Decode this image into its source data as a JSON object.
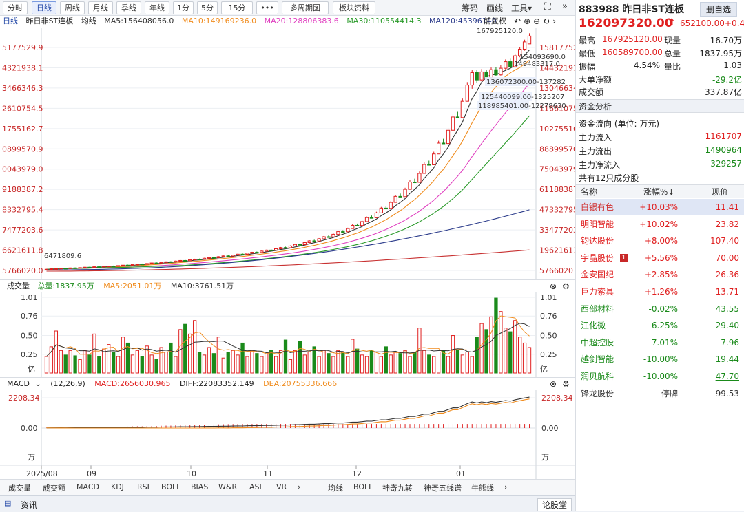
{
  "toolbar": {
    "periods": [
      "分时",
      "日线",
      "周线",
      "月线",
      "季线",
      "年线",
      "1分",
      "5分",
      "15分"
    ],
    "more": "•••",
    "multi_period": "多周期图",
    "sector_info": "板块资料",
    "chips": "筹码",
    "draw": "画线",
    "tools": "工具"
  },
  "indicator_row": {
    "title": "日线",
    "name": "昨日非ST连板",
    "avg": "均线",
    "ma5": "MA5:156408056.0",
    "ma10": "MA10:149169236.0",
    "ma20": "MA20:128806383.6",
    "ma30": "MA30:110554414.3",
    "ma120": "MA120:45396140",
    "fq": "前复权"
  },
  "price_axis": {
    "left": [
      "5177529.9",
      "4321938.1",
      "3466346.3",
      "2610754.5",
      "1755162.7",
      "0899570.9",
      "0043979.0",
      "9188387.2",
      "8332795.4",
      "7477203.6",
      "6621611.8",
      "5766020.0"
    ],
    "right": [
      "158177529",
      "144321938",
      "130466346",
      "116610754",
      "102755162",
      "88899570",
      "75043979",
      "61188387",
      "47332795",
      "33477203",
      "19621611",
      "5766020"
    ],
    "annotations": [
      "167925120.0",
      "154093690.0",
      "149483317.0",
      "136072300.00-137282",
      "125440099.00-1325207",
      "118985401.00-12278630",
      "6471809.6"
    ]
  },
  "candles": [
    {
      "o": 6400000.0,
      "c": 6600000.0,
      "h": 6800000.0,
      "l": 6200000.0
    },
    {
      "o": 6600000.0,
      "c": 6900000.0,
      "h": 7100000.0,
      "l": 6500000.0
    },
    {
      "o": 6900000.0,
      "c": 7000000.0,
      "h": 7200000.0,
      "l": 6800000.0
    },
    {
      "o": 7000000.0,
      "c": 7300000.0,
      "h": 7500000.0,
      "l": 6900000.0
    },
    {
      "o": 7300000.0,
      "c": 7200000.0,
      "h": 7500000.0,
      "l": 7000000.0
    },
    {
      "o": 7200000.0,
      "c": 7500000.0,
      "h": 7700000.0,
      "l": 7100000.0
    },
    {
      "o": 7500000.0,
      "c": 7400000.0,
      "h": 7800000.0,
      "l": 7300000.0
    },
    {
      "o": 7400000.0,
      "c": 7700000.0,
      "h": 7900000.0,
      "l": 7300000.0
    },
    {
      "o": 7700000.0,
      "c": 8000000.0,
      "h": 8200000.0,
      "l": 7600000.0
    },
    {
      "o": 8000000.0,
      "c": 7900000.0,
      "h": 8300000.0,
      "l": 7800000.0
    },
    {
      "o": 7900000.0,
      "c": 8300000.0,
      "h": 8500000.0,
      "l": 7800000.0
    },
    {
      "o": 8300000.0,
      "c": 8200000.0,
      "h": 8600000.0,
      "l": 8100000.0
    },
    {
      "o": 8200000.0,
      "c": 8600000.0,
      "h": 8800000.0,
      "l": 8100000.0
    },
    {
      "o": 8600000.0,
      "c": 8800000.0,
      "h": 9000000.0,
      "l": 8500000.0
    },
    {
      "o": 8800000.0,
      "c": 8700000.0,
      "h": 9100000.0,
      "l": 8600000.0
    },
    {
      "o": 8700000.0,
      "c": 9100000.0,
      "h": 9300000.0,
      "l": 8600000.0
    },
    {
      "o": 9100000.0,
      "c": 9400000.0,
      "h": 9600000.0,
      "l": 9000000.0
    },
    {
      "o": 9400000.0,
      "c": 9300000.0,
      "h": 9700000.0,
      "l": 9200000.0
    },
    {
      "o": 9300000.0,
      "c": 9800000.0,
      "h": 10000000.0,
      "l": 9200000.0
    },
    {
      "o": 9800000.0,
      "c": 10100000.0,
      "h": 10400000.0,
      "l": 9700000.0
    },
    {
      "o": 10100000.0,
      "c": 10000000.0,
      "h": 10500000.0,
      "l": 9900000.0
    },
    {
      "o": 10000000.0,
      "c": 10500000.0,
      "h": 10800000.0,
      "l": 9900000.0
    },
    {
      "o": 10500000.0,
      "c": 10900000.0,
      "h": 11100000.0,
      "l": 10400000.0
    },
    {
      "o": 10900000.0,
      "c": 10800000.0,
      "h": 11300000.0,
      "l": 10700000.0
    },
    {
      "o": 10800000.0,
      "c": 11300000.0,
      "h": 11600000.0,
      "l": 10700000.0
    },
    {
      "o": 11300000.0,
      "c": 11700000.0,
      "h": 12000000.0,
      "l": 11200000.0
    },
    {
      "o": 11700000.0,
      "c": 11600000.0,
      "h": 12100000.0,
      "l": 11500000.0
    },
    {
      "o": 11600000.0,
      "c": 12200000.0,
      "h": 12500000.0,
      "l": 11500000.0
    },
    {
      "o": 12200000.0,
      "c": 12600000.0,
      "h": 12900000.0,
      "l": 12100000.0
    },
    {
      "o": 12600000.0,
      "c": 12500000.0,
      "h": 13000000.0,
      "l": 12400000.0
    },
    {
      "o": 12500000.0,
      "c": 13100000.0,
      "h": 13400000.0,
      "l": 12400000.0
    },
    {
      "o": 13100000.0,
      "c": 13500000.0,
      "h": 13800000.0,
      "l": 13000000.0
    },
    {
      "o": 13500000.0,
      "c": 13400000.0,
      "h": 13900000.0,
      "l": 13300000.0
    },
    {
      "o": 13400000.0,
      "c": 14100000.0,
      "h": 14400000.0,
      "l": 13300000.0
    },
    {
      "o": 14100000.0,
      "c": 14600000.0,
      "h": 14900000.0,
      "l": 14000000.0
    },
    {
      "o": 14600000.0,
      "c": 14500000.0,
      "h": 15000000.0,
      "l": 14400000.0
    },
    {
      "o": 14500000.0,
      "c": 15200000.0,
      "h": 15500000.0,
      "l": 14400000.0
    },
    {
      "o": 15200000.0,
      "c": 15700000.0,
      "h": 16000000.0,
      "l": 15100000.0
    },
    {
      "o": 15700000.0,
      "c": 15600000.0,
      "h": 16200000.0,
      "l": 15500000.0
    },
    {
      "o": 15600000.0,
      "c": 16300000.0,
      "h": 16600000.0,
      "l": 15500000.0
    },
    {
      "o": 16300000.0,
      "c": 16900000.0,
      "h": 17200000.0,
      "l": 16200000.0
    },
    {
      "o": 16900000.0,
      "c": 16800000.0,
      "h": 17400000.0,
      "l": 16700000.0
    },
    {
      "o": 16800000.0,
      "c": 17600000.0,
      "h": 17900000.0,
      "l": 16700000.0
    },
    {
      "o": 17600000.0,
      "c": 18200000.0,
      "h": 18500000.0,
      "l": 17500000.0
    },
    {
      "o": 18200000.0,
      "c": 18100000.0,
      "h": 18700000.0,
      "l": 18000000.0
    },
    {
      "o": 18100000.0,
      "c": 19000000.0,
      "h": 19300000.0,
      "l": 18000000.0
    },
    {
      "o": 19000000.0,
      "c": 19700000.0,
      "h": 20000000.0,
      "l": 18900000.0
    },
    {
      "o": 19700000.0,
      "c": 19600000.0,
      "h": 20200000.0,
      "l": 19500000.0
    },
    {
      "o": 19600000.0,
      "c": 20600000.0,
      "h": 20900000.0,
      "l": 19500000.0
    },
    {
      "o": 20600000.0,
      "c": 21400000.0,
      "h": 21800000.0,
      "l": 20500000.0
    },
    {
      "o": 21400000.0,
      "c": 21300000.0,
      "h": 22000000.0,
      "l": 21200000.0
    },
    {
      "o": 21300000.0,
      "c": 22500000.0,
      "h": 22900000.0,
      "l": 21200000.0
    },
    {
      "o": 22500000.0,
      "c": 23500000.0,
      "h": 23900000.0,
      "l": 22400000.0
    },
    {
      "o": 23500000.0,
      "c": 23400000.0,
      "h": 24200000.0,
      "l": 23300000.0
    },
    {
      "o": 23400000.0,
      "c": 24800000.0,
      "h": 25200000.0,
      "l": 23300000.0
    },
    {
      "o": 24800000.0,
      "c": 26000000.0,
      "h": 26400000.0,
      "l": 24700000.0
    },
    {
      "o": 26000000.0,
      "c": 25900000.0,
      "h": 26800000.0,
      "l": 25800000.0
    },
    {
      "o": 25900000.0,
      "c": 27400000.0,
      "h": 27900000.0,
      "l": 25800000.0
    },
    {
      "o": 27400000.0,
      "c": 28800000.0,
      "h": 29300000.0,
      "l": 27300000.0
    },
    {
      "o": 28800000.0,
      "c": 28700000.0,
      "h": 29700000.0,
      "l": 28600000.0
    },
    {
      "o": 28700000.0,
      "c": 30500000.0,
      "h": 31000000.0,
      "l": 28600000.0
    },
    {
      "o": 30500000.0,
      "c": 32300000.0,
      "h": 32900000.0,
      "l": 30400000.0
    },
    {
      "o": 32300000.0,
      "c": 32200000.0,
      "h": 33300000.0,
      "l": 32100000.0
    },
    {
      "o": 32200000.0,
      "c": 34400000.0,
      "h": 35000000.0,
      "l": 32100000.0
    },
    {
      "o": 34400000.0,
      "c": 36600000.0,
      "h": 37300000.0,
      "l": 34300000.0
    },
    {
      "o": 36600000.0,
      "c": 36500000.0,
      "h": 37800000.0,
      "l": 36400000.0
    },
    {
      "o": 36500000.0,
      "c": 39200000.0,
      "h": 39900000.0,
      "l": 36400000.0
    },
    {
      "o": 39200000.0,
      "c": 41900000.0,
      "h": 42600000.0,
      "l": 39100000.0
    },
    {
      "o": 41900000.0,
      "c": 41800000.0,
      "h": 43300000.0,
      "l": 41700000.0
    },
    {
      "o": 41800000.0,
      "c": 45100000.0,
      "h": 45900000.0,
      "l": 41700000.0
    },
    {
      "o": 45100000.0,
      "c": 48400000.0,
      "h": 49200000.0,
      "l": 45000000.0
    },
    {
      "o": 48400000.0,
      "c": 48200000.0,
      "h": 50000000.0,
      "l": 48100000.0
    },
    {
      "o": 48200000.0,
      "c": 52300000.0,
      "h": 53200000.0,
      "l": 48100000.0
    },
    {
      "o": 52300000.0,
      "c": 56400000.0,
      "h": 57400000.0,
      "l": 52200000.0
    },
    {
      "o": 56400000.0,
      "c": 56200000.0,
      "h": 58300000.0,
      "l": 56000000.0
    },
    {
      "o": 56200000.0,
      "c": 61200000.0,
      "h": 62300000.0,
      "l": 56100000.0
    },
    {
      "o": 61200000.0,
      "c": 66200000.0,
      "h": 67400000.0,
      "l": 61100000.0
    },
    {
      "o": 66200000.0,
      "c": 66000000.0,
      "h": 68500000.0,
      "l": 65800000.0
    },
    {
      "o": 66000000.0,
      "c": 72100000.0,
      "h": 73400000.0,
      "l": 65900000.0
    },
    {
      "o": 72100000.0,
      "c": 78200000.0,
      "h": 79600000.0,
      "l": 72000000.0
    },
    {
      "o": 78200000.0,
      "c": 78000000.0,
      "h": 80800000.0,
      "l": 77800000.0
    },
    {
      "o": 78000000.0,
      "c": 85400000.0,
      "h": 86900000.0,
      "l": 77900000.0
    },
    {
      "o": 85400000.0,
      "c": 92800000.0,
      "h": 94400000.0,
      "l": 85300000.0
    },
    {
      "o": 92800000.0,
      "c": 92500000.0,
      "h": 95800000.0,
      "l": 92200000.0
    },
    {
      "o": 92500000.0,
      "c": 101600000.0,
      "h": 103300000.0,
      "l": 92400000.0
    },
    {
      "o": 101600000.0,
      "c": 110700000.0,
      "h": 112500000.0,
      "l": 101500000.0
    },
    {
      "o": 110700000.0,
      "c": 110300000.0,
      "h": 114200000.0,
      "l": 109900000.0
    },
    {
      "o": 110300000.0,
      "c": 121400000.0,
      "h": 123300000.0,
      "l": 110200000.0
    },
    {
      "o": 121400000.0,
      "c": 132500000.0,
      "h": 134500000.0,
      "l": 121300000.0
    },
    {
      "o": 132500000.0,
      "c": 141000000.0,
      "h": 143000000.0,
      "l": 130000000.0
    },
    {
      "o": 141000000.0,
      "c": 136000000.0,
      "h": 143000000.0,
      "l": 134000000.0
    },
    {
      "o": 136000000.0,
      "c": 141500000.0,
      "h": 143500000.0,
      "l": 135000000.0
    },
    {
      "o": 141500000.0,
      "c": 137500000.0,
      "h": 143000000.0,
      "l": 136000000.0
    },
    {
      "o": 137500000.0,
      "c": 143000000.0,
      "h": 144500000.0,
      "l": 136500000.0
    },
    {
      "o": 143000000.0,
      "c": 139500000.0,
      "h": 145000000.0,
      "l": 138500000.0
    },
    {
      "o": 139500000.0,
      "c": 144000000.0,
      "h": 146000000.0,
      "l": 139000000.0
    },
    {
      "o": 144000000.0,
      "c": 148500000.0,
      "h": 150000000.0,
      "l": 143000000.0
    },
    {
      "o": 148500000.0,
      "c": 145000000.0,
      "h": 150500000.0,
      "l": 144000000.0
    },
    {
      "o": 145000000.0,
      "c": 152500000.0,
      "h": 154000000.0,
      "l": 144500000.0
    },
    {
      "o": 152500000.0,
      "c": 157000000.0,
      "h": 158500000.0,
      "l": 151500000.0
    },
    {
      "o": 157000000.0,
      "c": 162000000.0,
      "h": 163500000.0,
      "l": 156000000.0
    },
    {
      "o": 160600000.0,
      "c": 166000000.0,
      "h": 167900000.0,
      "l": 160600000.0
    }
  ],
  "volume_panel": {
    "label": "成交量",
    "total": "总量:1837.95万",
    "ma5": "MA5:2051.01万",
    "ma10": "MA10:3761.51万",
    "ticks": [
      "1.01",
      "0.76",
      "0.50",
      "0.25"
    ],
    "unit": "亿",
    "values": [
      0.22,
      0.35,
      0.56,
      0.3,
      0.24,
      0.3,
      0.23,
      0.18,
      0.3,
      0.24,
      0.52,
      0.22,
      0.32,
      0.38,
      0.28,
      0.22,
      0.48,
      0.4,
      0.24,
      0.3,
      0.22,
      0.36,
      0.24,
      0.18,
      0.34,
      0.28,
      0.4,
      0.22,
      0.58,
      0.65,
      0.52,
      0.7,
      0.28,
      0.24,
      0.34,
      0.26,
      0.48,
      0.2,
      0.28,
      0.3,
      0.24,
      0.4,
      0.22,
      0.3,
      0.26,
      0.22,
      0.28,
      0.3,
      0.22,
      0.3,
      0.44,
      0.18,
      0.3,
      0.42,
      0.24,
      0.28,
      0.35,
      0.22,
      0.3,
      0.26,
      0.22,
      0.3,
      0.28,
      0.22,
      0.45,
      0.32,
      0.24,
      0.22,
      0.3,
      0.28,
      0.22,
      0.35,
      0.24,
      0.28,
      0.26,
      0.3,
      0.22,
      0.28,
      0.6,
      0.3,
      0.24,
      0.22,
      0.28,
      0.3,
      0.22,
      0.5,
      0.3,
      0.24,
      0.28,
      0.22,
      0.48,
      0.66,
      0.58,
      0.75,
      1.0,
      0.82,
      0.6,
      0.55,
      0.7,
      0.48,
      0.4,
      0.34,
      0.28,
      0.42,
      0.2
    ]
  },
  "macd_panel": {
    "label": "MACD",
    "params": "(12,26,9)",
    "macd": "MACD:2656030.965",
    "diff": "DIFF:22083352.149",
    "dea": "DEA:20755336.666",
    "ticks": [
      "2208.34",
      "0.00"
    ],
    "unit": "万"
  },
  "x_axis": [
    "2025/08",
    "09",
    "10",
    "11",
    "12",
    "01"
  ],
  "bottom_tabs": {
    "left": [
      "成交量",
      "成交额",
      "MACD",
      "KDJ",
      "RSI",
      "BOLL",
      "BIAS",
      "W&R",
      "ASI",
      "VR"
    ],
    "right": [
      "均线",
      "BOLL",
      "神奇九转",
      "神奇五线谱",
      "牛熊线"
    ]
  },
  "status": {
    "news": "资讯",
    "forum": "论股堂"
  },
  "quote": {
    "code": "883988",
    "name": "昨日非ST连板",
    "add": "删自选",
    "price": "162097320.00",
    "change": "652100.00",
    "pct": "+0.4",
    "high_label": "最高",
    "high": "167925120.00",
    "now_label": "现量",
    "now": "16.70万",
    "low_label": "最低",
    "low": "160589700.00",
    "vol_label": "总量",
    "vol": "1837.95万",
    "amp_label": "振幅",
    "amp": "4.54%",
    "ratio_label": "量比",
    "ratio": "1.03",
    "big_label": "大单净额",
    "big": "-29.2亿",
    "amt_label": "成交额",
    "amt": "337.87亿"
  },
  "funds": {
    "title": "资金分析",
    "unit": "资金流向 (单位: 万元)",
    "in_label": "主力流入",
    "in": "1161707",
    "out_label": "主力流出",
    "out": "1490964",
    "net_label": "主力净流入",
    "net": "-329257"
  },
  "constituents": {
    "title": "共有12只成分股",
    "h_name": "名称",
    "h_chg": "涨幅%↓",
    "h_price": "现价",
    "rows": [
      {
        "name": "白银有色",
        "chg": "+10.03%",
        "price": "11.41",
        "up": true,
        "ul": true
      },
      {
        "name": "明阳智能",
        "chg": "+10.02%",
        "price": "23.82",
        "up": true,
        "ul": true
      },
      {
        "name": "钧达股份",
        "chg": "+8.00%",
        "price": "107.40",
        "up": true,
        "ul": false
      },
      {
        "name": "宇晶股份",
        "chg": "+5.56%",
        "price": "70.00",
        "up": true,
        "ul": false,
        "badge": "1"
      },
      {
        "name": "金安国纪",
        "chg": "+2.85%",
        "price": "26.36",
        "up": true,
        "ul": false
      },
      {
        "name": "巨力索具",
        "chg": "+1.26%",
        "price": "13.71",
        "up": true,
        "ul": false
      },
      {
        "name": "西部材料",
        "chg": "-0.02%",
        "price": "43.55",
        "up": false,
        "ul": false
      },
      {
        "name": "江化微",
        "chg": "-6.25%",
        "price": "29.40",
        "up": false,
        "ul": false
      },
      {
        "name": "中超控股",
        "chg": "-7.01%",
        "price": "7.96",
        "up": false,
        "ul": false
      },
      {
        "name": "越剑智能",
        "chg": "-10.00%",
        "price": "19.44",
        "up": false,
        "ul": true
      },
      {
        "name": "润贝航科",
        "chg": "-10.00%",
        "price": "47.70",
        "up": false,
        "ul": true
      },
      {
        "name": "锋龙股份",
        "chg": "停牌",
        "price": "99.53",
        "up": null,
        "ul": false
      }
    ]
  },
  "colors": {
    "up": "#e02020",
    "down": "#1a8a1a",
    "ma5": "#333333",
    "ma10": "#f08c1e",
    "ma20": "#e040c0",
    "ma30": "#2a9a2a",
    "ma120": "#2a3a8a",
    "ma250": "#c83232"
  }
}
